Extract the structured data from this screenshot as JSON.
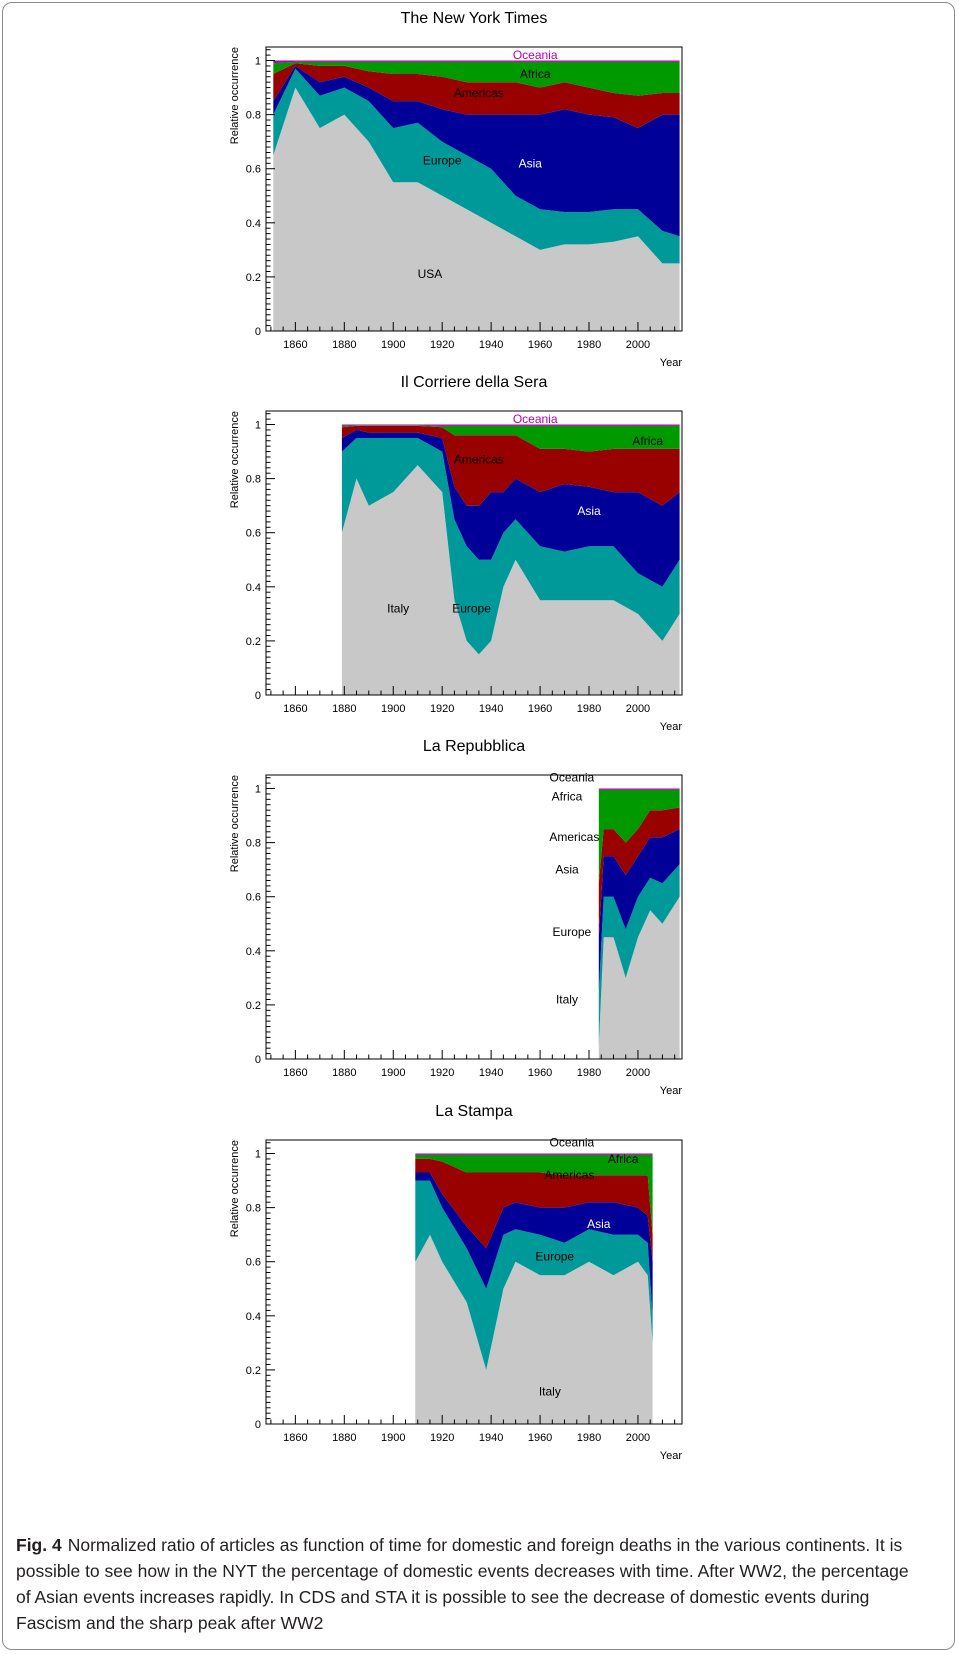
{
  "figure": {
    "label": "Fig. 4",
    "caption": "Normalized ratio of articles as function of time for domestic and foreign deaths in the various continents. It is possible to see how in the NYT the percentage of domestic events decreases with time. After WW2, the percentage of Asian events increases rapidly. In CDS and STA it is possible to see the decrease of domestic events during Fascism and the sharp peak after WW2"
  },
  "colors": {
    "domestic": "#c8c8c8",
    "Europe": "#009999",
    "Asia": "#000099",
    "Americas": "#990000",
    "Africa": "#009900",
    "Oceania": "#b300b3"
  },
  "chart_data": [
    {
      "type": "area",
      "stacked": true,
      "title": "The New York Times",
      "xlabel": "Year",
      "ylabel": "Relative occurrence",
      "xlim": [
        1848,
        2018
      ],
      "ylim": [
        0,
        1.05
      ],
      "xticks": [
        1860,
        1880,
        1900,
        1920,
        1940,
        1960,
        1980,
        2000
      ],
      "yticks": [
        0,
        0.2,
        0.4,
        0.6,
        0.8,
        1
      ],
      "x": [
        1851,
        1860,
        1870,
        1880,
        1890,
        1900,
        1910,
        1920,
        1930,
        1940,
        1950,
        1960,
        1970,
        1980,
        1990,
        2000,
        2010,
        2017
      ],
      "series": [
        {
          "name": "USA",
          "values": [
            0.65,
            0.9,
            0.75,
            0.8,
            0.7,
            0.55,
            0.55,
            0.5,
            0.45,
            0.4,
            0.35,
            0.3,
            0.32,
            0.32,
            0.33,
            0.35,
            0.25,
            0.25
          ]
        },
        {
          "name": "Europe",
          "values": [
            0.15,
            0.07,
            0.12,
            0.1,
            0.15,
            0.2,
            0.22,
            0.2,
            0.2,
            0.2,
            0.15,
            0.15,
            0.12,
            0.12,
            0.12,
            0.1,
            0.12,
            0.1
          ]
        },
        {
          "name": "Asia",
          "values": [
            0.05,
            0.01,
            0.05,
            0.04,
            0.05,
            0.1,
            0.08,
            0.12,
            0.15,
            0.2,
            0.3,
            0.35,
            0.38,
            0.36,
            0.34,
            0.3,
            0.43,
            0.45
          ]
        },
        {
          "name": "Americas",
          "values": [
            0.1,
            0.01,
            0.06,
            0.04,
            0.06,
            0.1,
            0.1,
            0.12,
            0.12,
            0.12,
            0.12,
            0.1,
            0.1,
            0.1,
            0.09,
            0.12,
            0.08,
            0.08
          ]
        },
        {
          "name": "Africa",
          "values": [
            0.04,
            0.005,
            0.015,
            0.015,
            0.035,
            0.045,
            0.045,
            0.055,
            0.075,
            0.075,
            0.075,
            0.095,
            0.075,
            0.095,
            0.115,
            0.125,
            0.115,
            0.115
          ]
        },
        {
          "name": "Oceania",
          "values": [
            0.01,
            0.005,
            0.005,
            0.005,
            0.005,
            0.005,
            0.005,
            0.005,
            0.005,
            0.005,
            0.005,
            0.005,
            0.005,
            0.005,
            0.005,
            0.005,
            0.005,
            0.005
          ]
        }
      ]
    },
    {
      "type": "area",
      "stacked": true,
      "title": "Il Corriere della Sera",
      "xlabel": "Year",
      "ylabel": "Relative occurrence",
      "xlim": [
        1848,
        2018
      ],
      "ylim": [
        0,
        1.05
      ],
      "xticks": [
        1860,
        1880,
        1900,
        1920,
        1940,
        1960,
        1980,
        2000
      ],
      "yticks": [
        0,
        0.2,
        0.4,
        0.6,
        0.8,
        1
      ],
      "x": [
        1879,
        1885,
        1890,
        1900,
        1910,
        1920,
        1925,
        1930,
        1935,
        1940,
        1945,
        1950,
        1960,
        1970,
        1980,
        1990,
        2000,
        2010,
        2017
      ],
      "series": [
        {
          "name": "Italy",
          "values": [
            0.6,
            0.8,
            0.7,
            0.75,
            0.85,
            0.75,
            0.35,
            0.2,
            0.15,
            0.2,
            0.4,
            0.5,
            0.35,
            0.35,
            0.35,
            0.35,
            0.3,
            0.2,
            0.3
          ]
        },
        {
          "name": "Europe",
          "values": [
            0.3,
            0.15,
            0.25,
            0.2,
            0.1,
            0.15,
            0.3,
            0.35,
            0.35,
            0.3,
            0.2,
            0.15,
            0.2,
            0.18,
            0.2,
            0.2,
            0.15,
            0.2,
            0.2
          ]
        },
        {
          "name": "Asia",
          "values": [
            0.05,
            0.03,
            0.02,
            0.02,
            0.02,
            0.05,
            0.12,
            0.15,
            0.2,
            0.25,
            0.15,
            0.15,
            0.2,
            0.25,
            0.22,
            0.2,
            0.3,
            0.3,
            0.25
          ]
        },
        {
          "name": "Americas",
          "values": [
            0.04,
            0.015,
            0.025,
            0.025,
            0.025,
            0.04,
            0.19,
            0.26,
            0.26,
            0.21,
            0.21,
            0.16,
            0.16,
            0.13,
            0.13,
            0.16,
            0.16,
            0.21,
            0.16
          ]
        },
        {
          "name": "Africa",
          "values": [
            0.005,
            0.002,
            0.002,
            0.002,
            0.002,
            0.005,
            0.035,
            0.035,
            0.035,
            0.035,
            0.035,
            0.035,
            0.085,
            0.085,
            0.095,
            0.085,
            0.085,
            0.085,
            0.085
          ]
        },
        {
          "name": "Oceania",
          "values": [
            0.005,
            0.003,
            0.003,
            0.003,
            0.003,
            0.005,
            0.005,
            0.005,
            0.005,
            0.005,
            0.005,
            0.005,
            0.005,
            0.005,
            0.005,
            0.005,
            0.005,
            0.005,
            0.005
          ]
        }
      ]
    },
    {
      "type": "area",
      "stacked": true,
      "title": "La Repubblica",
      "xlabel": "Year",
      "ylabel": "Relative occurrence",
      "xlim": [
        1848,
        2018
      ],
      "ylim": [
        0,
        1.05
      ],
      "xticks": [
        1860,
        1880,
        1900,
        1920,
        1940,
        1960,
        1980,
        2000
      ],
      "yticks": [
        0,
        0.2,
        0.4,
        0.6,
        0.8,
        1
      ],
      "x": [
        1984,
        1986,
        1990,
        1995,
        2000,
        2005,
        2010,
        2017
      ],
      "series": [
        {
          "name": "Italy",
          "values": [
            0.05,
            0.45,
            0.45,
            0.3,
            0.45,
            0.55,
            0.5,
            0.6
          ]
        },
        {
          "name": "Europe",
          "values": [
            0.2,
            0.15,
            0.15,
            0.18,
            0.15,
            0.12,
            0.15,
            0.12
          ]
        },
        {
          "name": "Asia",
          "values": [
            0.2,
            0.15,
            0.15,
            0.2,
            0.15,
            0.15,
            0.17,
            0.13
          ]
        },
        {
          "name": "Americas",
          "values": [
            0.2,
            0.1,
            0.1,
            0.12,
            0.1,
            0.1,
            0.1,
            0.08
          ]
        },
        {
          "name": "Africa",
          "values": [
            0.345,
            0.145,
            0.145,
            0.195,
            0.145,
            0.075,
            0.075,
            0.065
          ]
        },
        {
          "name": "Oceania",
          "values": [
            0.005,
            0.005,
            0.005,
            0.005,
            0.005,
            0.005,
            0.005,
            0.005
          ]
        }
      ]
    },
    {
      "type": "area",
      "stacked": true,
      "title": "La Stampa",
      "xlabel": "Year",
      "ylabel": "Relative occurrence",
      "xlim": [
        1848,
        2018
      ],
      "ylim": [
        0,
        1.05
      ],
      "xticks": [
        1860,
        1880,
        1900,
        1920,
        1940,
        1960,
        1980,
        2000
      ],
      "yticks": [
        0,
        0.2,
        0.4,
        0.6,
        0.8,
        1
      ],
      "x": [
        1909,
        1915,
        1920,
        1930,
        1938,
        1945,
        1950,
        1960,
        1970,
        1980,
        1990,
        2000,
        2004,
        2006
      ],
      "series": [
        {
          "name": "Italy",
          "values": [
            0.6,
            0.7,
            0.6,
            0.45,
            0.2,
            0.5,
            0.6,
            0.55,
            0.55,
            0.6,
            0.55,
            0.6,
            0.55,
            0.3
          ]
        },
        {
          "name": "Europe",
          "values": [
            0.3,
            0.2,
            0.2,
            0.2,
            0.3,
            0.2,
            0.12,
            0.15,
            0.12,
            0.12,
            0.15,
            0.1,
            0.12,
            0.1
          ]
        },
        {
          "name": "Asia",
          "values": [
            0.03,
            0.03,
            0.05,
            0.08,
            0.15,
            0.1,
            0.1,
            0.1,
            0.13,
            0.1,
            0.12,
            0.1,
            0.1,
            0.2
          ]
        },
        {
          "name": "Americas",
          "values": [
            0.05,
            0.05,
            0.12,
            0.2,
            0.28,
            0.13,
            0.11,
            0.13,
            0.12,
            0.1,
            0.1,
            0.12,
            0.15,
            0.1
          ]
        },
        {
          "name": "Africa",
          "values": [
            0.015,
            0.015,
            0.025,
            0.065,
            0.065,
            0.065,
            0.065,
            0.065,
            0.075,
            0.075,
            0.075,
            0.075,
            0.075,
            0.295
          ]
        },
        {
          "name": "Oceania",
          "values": [
            0.005,
            0.005,
            0.005,
            0.005,
            0.005,
            0.005,
            0.005,
            0.005,
            0.005,
            0.005,
            0.005,
            0.005,
            0.005,
            0.005
          ]
        }
      ]
    }
  ],
  "annotations": [
    [
      {
        "text": "Oceania",
        "x": 1958,
        "y": 1.02,
        "color": "Oceania"
      },
      {
        "text": "Africa",
        "x": 1958,
        "y": 0.95,
        "color": "black"
      },
      {
        "text": "Americas",
        "x": 1935,
        "y": 0.88,
        "color": "black"
      },
      {
        "text": "Asia",
        "x": 1956,
        "y": 0.62,
        "color": "white"
      },
      {
        "text": "Europe",
        "x": 1920,
        "y": 0.63,
        "color": "black"
      },
      {
        "text": "USA",
        "x": 1915,
        "y": 0.21,
        "color": "black"
      }
    ],
    [
      {
        "text": "Oceania",
        "x": 1958,
        "y": 1.02,
        "color": "Oceania"
      },
      {
        "text": "Africa",
        "x": 2004,
        "y": 0.94,
        "color": "black"
      },
      {
        "text": "Americas",
        "x": 1935,
        "y": 0.87,
        "color": "black"
      },
      {
        "text": "Asia",
        "x": 1980,
        "y": 0.68,
        "color": "white"
      },
      {
        "text": "Europe",
        "x": 1932,
        "y": 0.32,
        "color": "black"
      },
      {
        "text": "Italy",
        "x": 1902,
        "y": 0.32,
        "color": "black"
      }
    ],
    [
      {
        "text": "Oceania",
        "x": 1973,
        "y": 1.04,
        "color": "black"
      },
      {
        "text": "Africa",
        "x": 1971,
        "y": 0.97,
        "color": "black"
      },
      {
        "text": "Americas",
        "x": 1974,
        "y": 0.82,
        "color": "black"
      },
      {
        "text": "Asia",
        "x": 1971,
        "y": 0.7,
        "color": "black"
      },
      {
        "text": "Europe",
        "x": 1973,
        "y": 0.47,
        "color": "black"
      },
      {
        "text": "Italy",
        "x": 1971,
        "y": 0.22,
        "color": "black"
      }
    ],
    [
      {
        "text": "Oceania",
        "x": 1973,
        "y": 1.04,
        "color": "black"
      },
      {
        "text": "Africa",
        "x": 1994,
        "y": 0.98,
        "color": "black"
      },
      {
        "text": "Americas",
        "x": 1972,
        "y": 0.92,
        "color": "black"
      },
      {
        "text": "Asia",
        "x": 1984,
        "y": 0.74,
        "color": "white"
      },
      {
        "text": "Europe",
        "x": 1966,
        "y": 0.62,
        "color": "black"
      },
      {
        "text": "Italy",
        "x": 1964,
        "y": 0.12,
        "color": "black"
      }
    ]
  ]
}
